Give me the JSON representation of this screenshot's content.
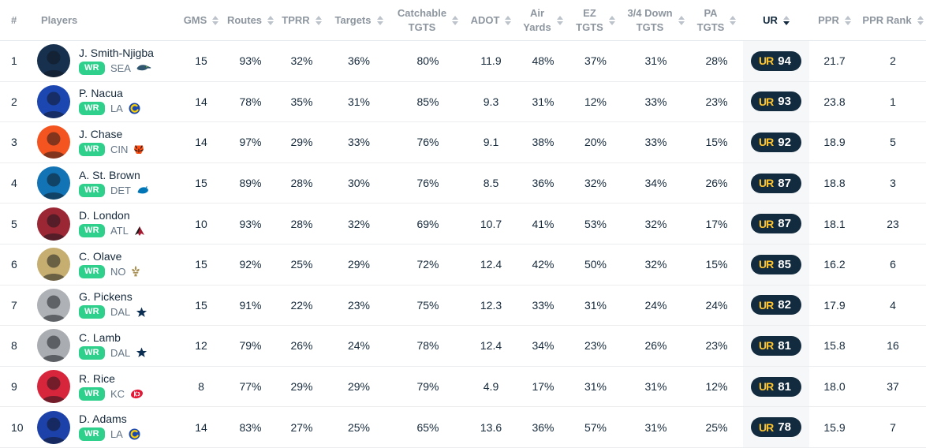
{
  "colors": {
    "accent_green": "#2FD08C",
    "ur_badge_bg": "#132B3E",
    "ur_logo_gold": "#FFC52F",
    "ur_column_bg": "#F6F7F8",
    "header_text": "#8D969F",
    "body_text": "#15293B"
  },
  "table": {
    "ur_logo_text": "UR",
    "headers": [
      {
        "id": "rank",
        "label": "#",
        "sortable": false
      },
      {
        "id": "players",
        "label": "Players",
        "sortable": false
      },
      {
        "id": "gms",
        "label": "GMS",
        "sortable": true
      },
      {
        "id": "routes",
        "label": "Routes",
        "sortable": true
      },
      {
        "id": "tprr",
        "label": "TPRR",
        "sortable": true
      },
      {
        "id": "targets",
        "label": "Targets",
        "sortable": true
      },
      {
        "id": "catchable_tgts",
        "label": "Catchable",
        "label2": "TGTS",
        "sortable": true
      },
      {
        "id": "adot",
        "label": "ADOT",
        "sortable": true
      },
      {
        "id": "air_yards",
        "label": "Air",
        "label2": "Yards",
        "sortable": true
      },
      {
        "id": "ez_tgts",
        "label": "EZ",
        "label2": "TGTS",
        "sortable": true
      },
      {
        "id": "down_tgts",
        "label": "3/4 Down",
        "label2": "TGTS",
        "sortable": true
      },
      {
        "id": "pa_tgts",
        "label": "PA",
        "label2": "TGTS",
        "sortable": true
      },
      {
        "id": "ur",
        "label": "UR",
        "sortable": true,
        "sort_active": "desc"
      },
      {
        "id": "ppr",
        "label": "PPR",
        "sortable": true
      },
      {
        "id": "ppr_rank",
        "label": "PPR Rank",
        "sortable": true
      }
    ],
    "rows": [
      {
        "rank": "1",
        "name": "J. Smith-Njigba",
        "position": "WR",
        "team": "SEA",
        "team_logo": "seahawks-logo",
        "avatar_color": "#16304E",
        "gms": "15",
        "routes": "93%",
        "tprr": "32%",
        "targets": "36%",
        "catchable_tgts": "80%",
        "adot": "11.9",
        "air_yards": "48%",
        "ez_tgts": "37%",
        "down_tgts": "31%",
        "pa_tgts": "28%",
        "ur": "94",
        "ppr": "21.7",
        "ppr_rank": "2"
      },
      {
        "rank": "2",
        "name": "P. Nacua",
        "position": "WR",
        "team": "LA",
        "team_logo": "rams-logo",
        "avatar_color": "#1C46B0",
        "gms": "14",
        "routes": "78%",
        "tprr": "35%",
        "targets": "31%",
        "catchable_tgts": "85%",
        "adot": "9.3",
        "air_yards": "31%",
        "ez_tgts": "12%",
        "down_tgts": "33%",
        "pa_tgts": "23%",
        "ur": "93",
        "ppr": "23.8",
        "ppr_rank": "1"
      },
      {
        "rank": "3",
        "name": "J. Chase",
        "position": "WR",
        "team": "CIN",
        "team_logo": "bengals-logo",
        "avatar_color": "#F4541F",
        "gms": "14",
        "routes": "97%",
        "tprr": "29%",
        "targets": "33%",
        "catchable_tgts": "76%",
        "adot": "9.1",
        "air_yards": "38%",
        "ez_tgts": "20%",
        "down_tgts": "33%",
        "pa_tgts": "15%",
        "ur": "92",
        "ppr": "18.9",
        "ppr_rank": "5"
      },
      {
        "rank": "4",
        "name": "A. St. Brown",
        "position": "WR",
        "team": "DET",
        "team_logo": "lions-logo",
        "avatar_color": "#1273B5",
        "gms": "15",
        "routes": "89%",
        "tprr": "28%",
        "targets": "30%",
        "catchable_tgts": "76%",
        "adot": "8.5",
        "air_yards": "36%",
        "ez_tgts": "32%",
        "down_tgts": "34%",
        "pa_tgts": "26%",
        "ur": "87",
        "ppr": "18.8",
        "ppr_rank": "3"
      },
      {
        "rank": "5",
        "name": "D. London",
        "position": "WR",
        "team": "ATL",
        "team_logo": "falcons-logo",
        "avatar_color": "#9B2735",
        "gms": "10",
        "routes": "93%",
        "tprr": "28%",
        "targets": "32%",
        "catchable_tgts": "69%",
        "adot": "10.7",
        "air_yards": "41%",
        "ez_tgts": "53%",
        "down_tgts": "32%",
        "pa_tgts": "17%",
        "ur": "87",
        "ppr": "18.1",
        "ppr_rank": "23"
      },
      {
        "rank": "6",
        "name": "C. Olave",
        "position": "WR",
        "team": "NO",
        "team_logo": "saints-logo",
        "avatar_color": "#C5AE70",
        "gms": "15",
        "routes": "92%",
        "tprr": "25%",
        "targets": "29%",
        "catchable_tgts": "72%",
        "adot": "12.4",
        "air_yards": "42%",
        "ez_tgts": "50%",
        "down_tgts": "32%",
        "pa_tgts": "15%",
        "ur": "85",
        "ppr": "16.2",
        "ppr_rank": "6"
      },
      {
        "rank": "7",
        "name": "G. Pickens",
        "position": "WR",
        "team": "DAL",
        "team_logo": "cowboys-logo",
        "avatar_color": "#AEB2B6",
        "gms": "15",
        "routes": "91%",
        "tprr": "22%",
        "targets": "23%",
        "catchable_tgts": "75%",
        "adot": "12.3",
        "air_yards": "33%",
        "ez_tgts": "31%",
        "down_tgts": "24%",
        "pa_tgts": "24%",
        "ur": "82",
        "ppr": "17.9",
        "ppr_rank": "4"
      },
      {
        "rank": "8",
        "name": "C. Lamb",
        "position": "WR",
        "team": "DAL",
        "team_logo": "cowboys-logo",
        "avatar_color": "#A9ADB1",
        "gms": "12",
        "routes": "79%",
        "tprr": "26%",
        "targets": "24%",
        "catchable_tgts": "78%",
        "adot": "12.4",
        "air_yards": "34%",
        "ez_tgts": "23%",
        "down_tgts": "26%",
        "pa_tgts": "23%",
        "ur": "81",
        "ppr": "15.8",
        "ppr_rank": "16"
      },
      {
        "rank": "9",
        "name": "R. Rice",
        "position": "WR",
        "team": "KC",
        "team_logo": "chiefs-logo",
        "avatar_color": "#D7253B",
        "gms": "8",
        "routes": "77%",
        "tprr": "29%",
        "targets": "29%",
        "catchable_tgts": "79%",
        "adot": "4.9",
        "air_yards": "17%",
        "ez_tgts": "31%",
        "down_tgts": "31%",
        "pa_tgts": "12%",
        "ur": "81",
        "ppr": "18.0",
        "ppr_rank": "37"
      },
      {
        "rank": "10",
        "name": "D. Adams",
        "position": "WR",
        "team": "LA",
        "team_logo": "rams-logo",
        "avatar_color": "#1C41A8",
        "gms": "14",
        "routes": "83%",
        "tprr": "27%",
        "targets": "25%",
        "catchable_tgts": "65%",
        "adot": "13.6",
        "air_yards": "36%",
        "ez_tgts": "57%",
        "down_tgts": "31%",
        "pa_tgts": "25%",
        "ur": "78",
        "ppr": "15.9",
        "ppr_rank": "7"
      }
    ]
  }
}
